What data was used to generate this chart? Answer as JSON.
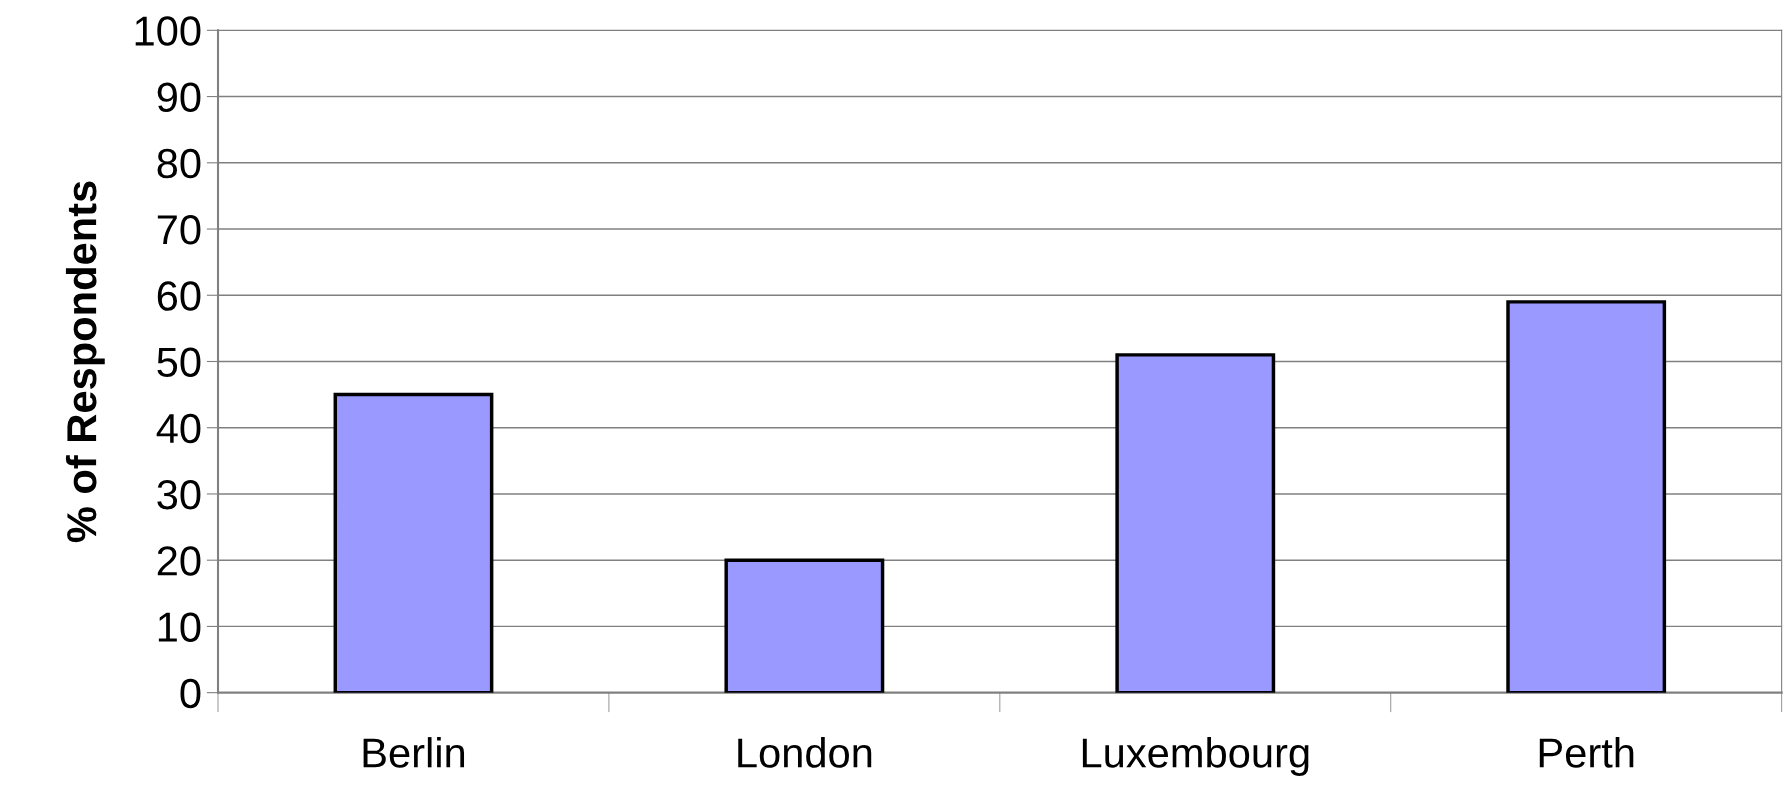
{
  "chart_data": {
    "type": "bar",
    "ylabel": "% of Respondents",
    "categories": [
      "Berlin",
      "London",
      "Luxembourg",
      "Perth"
    ],
    "values": [
      45,
      20,
      51,
      59
    ],
    "color": "#9999ff",
    "ylim": [
      0,
      100
    ],
    "yticks": [
      0,
      10,
      20,
      30,
      40,
      50,
      60,
      70,
      80,
      90,
      100
    ],
    "grid": "y",
    "legend": false
  }
}
